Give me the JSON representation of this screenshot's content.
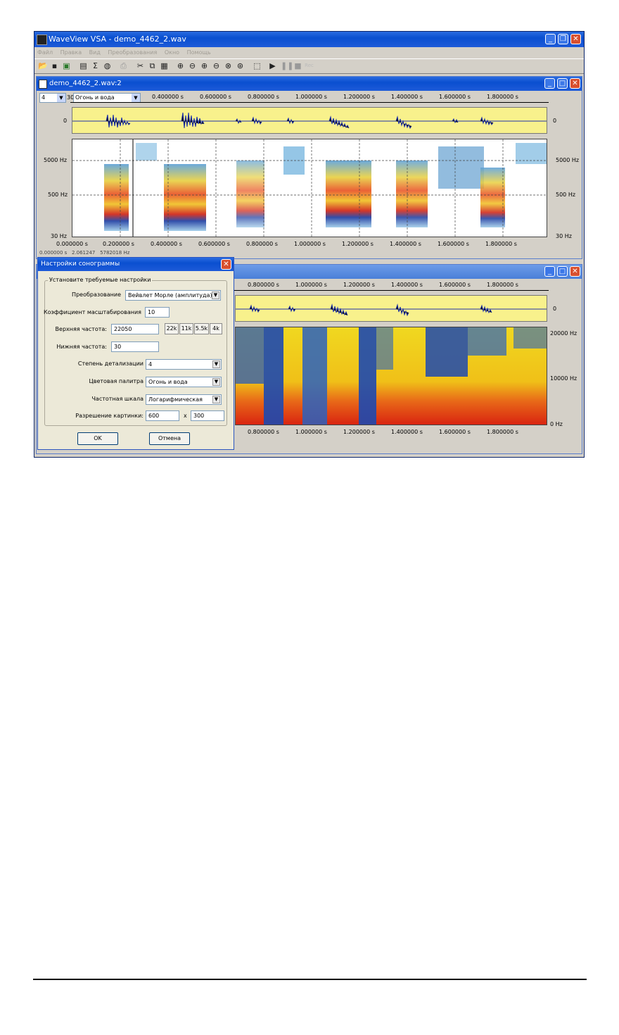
{
  "app": {
    "title": "WaveView VSA - demo_4462_2.wav",
    "menu": [
      "Файл",
      "Правка",
      "Вид",
      "Преобразования",
      "Окно",
      "Помощь"
    ],
    "toolbar_icons": [
      "open-icon",
      "save-icon",
      "export-icon",
      "copy-file-icon",
      "sum-icon",
      "mouse-icon",
      "print-icon",
      "cut-icon",
      "copy-icon",
      "paste-icon",
      "zoom-in-h-icon",
      "zoom-out-h-icon",
      "zoom-in-v-icon",
      "zoom-out-v-icon",
      "zoom-fit-icon",
      "zoom-all-icon",
      "select-icon",
      "play-icon",
      "pause-icon",
      "stop-icon",
      "rec-icon"
    ],
    "rec_label": "Rec"
  },
  "child1": {
    "title": "demo_4462_2.wav:2",
    "detail_value": "4",
    "palette_value": "Огонь и вода",
    "prefix": "30",
    "time_ticks": [
      "0.000000 s",
      "0.200000 s",
      "0.400000 s",
      "0.600000 s",
      "0.800000 s",
      "1.000000 s",
      "1.200000 s",
      "1.400000 s",
      "1.600000 s",
      "1.800000 s"
    ],
    "wave_zero": "0",
    "freq_left": [
      "5000 Hz",
      "500 Hz",
      "30 Hz"
    ],
    "freq_right": [
      "5000 Hz",
      "500 Hz",
      "30 Hz"
    ],
    "status": [
      "0.000000 s",
      "2.061247",
      "5782018 Hz"
    ]
  },
  "child2": {
    "time_ticks_top": [
      "0.800000 s",
      "1.000000 s",
      "1.200000 s",
      "1.400000 s",
      "1.600000 s",
      "1.800000 s"
    ],
    "time_ticks_bottom": [
      "0.800000 s",
      "1.000000 s",
      "1.200000 s",
      "1.400000 s",
      "1.600000 s",
      "1.800000 s"
    ],
    "wave_zero": "0",
    "freq_right": [
      "20000 Hz",
      "10000 Hz",
      "0 Hz"
    ]
  },
  "dialog": {
    "title": "Настройки сонограммы",
    "group": "Установите требуемые настройки",
    "transform_label": "Преобразование",
    "transform_value": "Вейвлет Морле (амплитуда)",
    "scale_label": "Коэффициент масштабирования",
    "scale_value": "10",
    "upper_label": "Верхняя частота:",
    "upper_value": "22050",
    "quick": [
      "22k",
      "11k",
      "5.5k",
      "4k"
    ],
    "lower_label": "Нижняя частота:",
    "lower_value": "30",
    "detail_label": "Степень детализации",
    "detail_value": "4",
    "palette_label": "Цветовая палитра",
    "palette_value": "Огонь и вода",
    "freqscale_label": "Частотная шкала",
    "freqscale_value": "Логарифмическая",
    "res_label": "Разрешение картинки:",
    "res_w": "600",
    "res_x": "x",
    "res_h": "300",
    "ok": "OK",
    "cancel": "Отмена"
  }
}
